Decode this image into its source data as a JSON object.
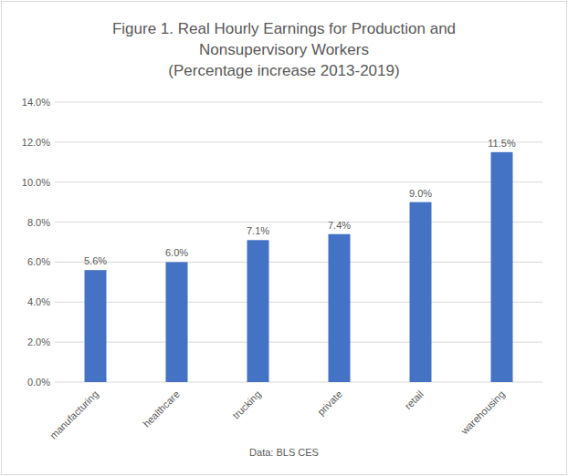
{
  "chart_data": {
    "type": "bar",
    "title": "Figure 1. Real Hourly Earnings for Production and Nonsupervisory Workers",
    "subtitle": "(Percentage increase 2013-2019)",
    "source": "Data: BLS CES",
    "categories": [
      "manufacturing",
      "healthcare",
      "trucking",
      "private",
      "retail",
      "warehousing"
    ],
    "values": [
      5.6,
      6.0,
      7.1,
      7.4,
      9.0,
      11.5
    ],
    "value_labels": [
      "5.6%",
      "6.0%",
      "7.1%",
      "7.4%",
      "9.0%",
      "11.5%"
    ],
    "data_labels": true,
    "color": "#4472c4",
    "ylim": [
      0,
      14
    ],
    "yticks": [
      {
        "value": 0,
        "label": "0.0%"
      },
      {
        "value": 2,
        "label": "2.0%"
      },
      {
        "value": 4,
        "label": "4.0%"
      },
      {
        "value": 6,
        "label": "6.0%"
      },
      {
        "value": 8,
        "label": "8.0%"
      },
      {
        "value": 10,
        "label": "10.0%"
      },
      {
        "value": 12,
        "label": "12.0%"
      },
      {
        "value": 14,
        "label": "14.0%"
      }
    ],
    "grid": true
  }
}
